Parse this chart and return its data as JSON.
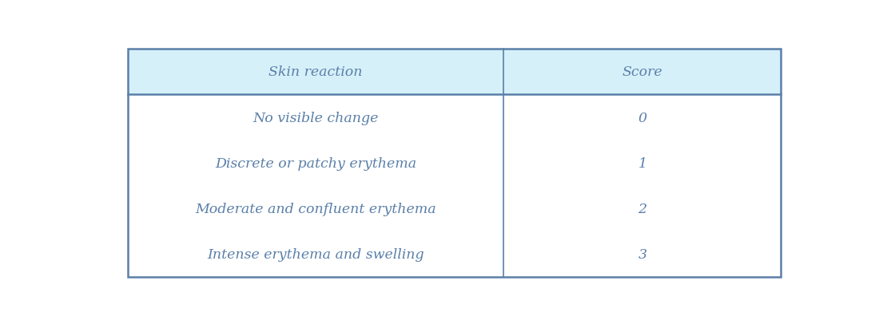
{
  "header": [
    "Skin reaction",
    "Score"
  ],
  "rows": [
    [
      "No visible change",
      "0"
    ],
    [
      "Discrete or patchy erythema",
      "1"
    ],
    [
      "Moderate and confluent erythema",
      "2"
    ],
    [
      "Intense erythema and swelling",
      "3"
    ]
  ],
  "header_bg_color": "#d6f0fa",
  "header_text_color": "#5a7fa8",
  "row_bg_color": "#ffffff",
  "row_text_color": "#5a7fa8",
  "border_color": "#5a7fa8",
  "col_split": 0.575,
  "figsize": [
    11.1,
    4.02
  ],
  "dpi": 100,
  "header_fontsize": 12.5,
  "row_fontsize": 12.5,
  "outer_border_lw": 1.8,
  "inner_border_lw": 1.2
}
